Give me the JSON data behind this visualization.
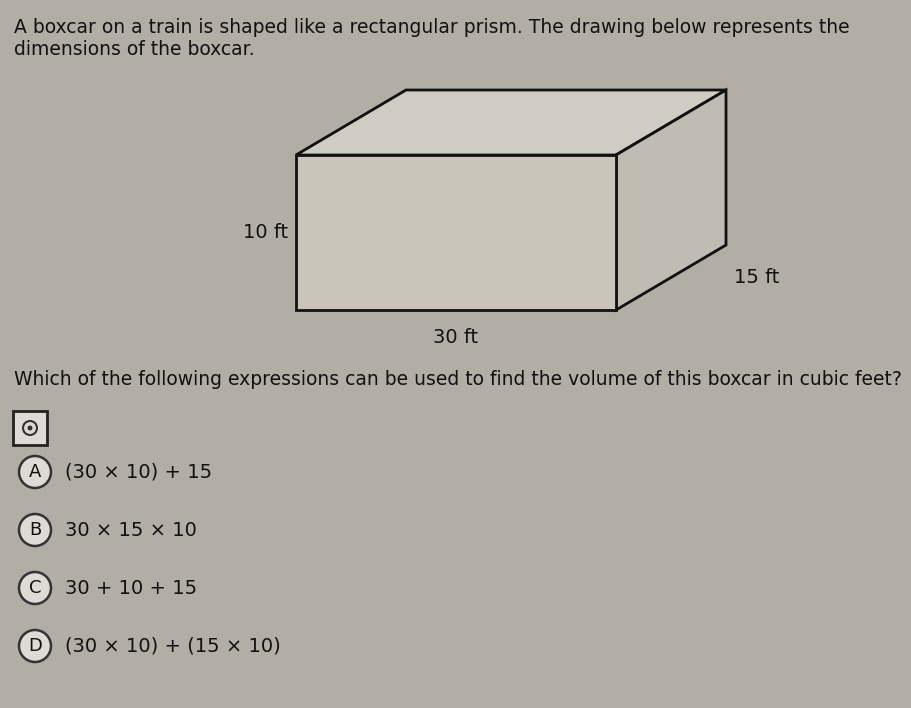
{
  "background_color": "#b2ada5",
  "text_color": "#111111",
  "paragraph_text_line1": "A boxcar on a train is shaped like a rectangular prism. The drawing below represents the",
  "paragraph_text_line2": "dimensions of the boxcar.",
  "question_text": "Which of the following expressions can be used to find the volume of this boxcar in cubic feet?",
  "options": [
    {
      "label": "A",
      "text": "(30 × 10) + 15"
    },
    {
      "label": "B",
      "text": "30 × 15 × 10"
    },
    {
      "label": "C",
      "text": "30 + 10 + 15"
    },
    {
      "label": "D",
      "text": "(30 × 10) + (15 × 10)"
    }
  ],
  "dim_30": "30 ft",
  "dim_10": "10 ft",
  "dim_15": "15 ft",
  "box_face_color": "#cac4bb",
  "box_edge_color": "#111111",
  "box_top_color": "#d0cbc3",
  "box_side_color": "#c0bbb3",
  "fig_width": 9.12,
  "fig_height": 7.08,
  "dpi": 100
}
